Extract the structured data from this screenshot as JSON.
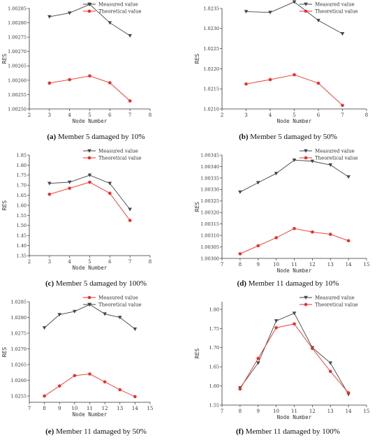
{
  "figure": {
    "panels": [
      {
        "letter": "(a)",
        "caption": " Member 5 damaged by 10%"
      },
      {
        "letter": "(b)",
        "caption": " Member 5 damaged by 50%"
      },
      {
        "letter": "(c)",
        "caption": " Member 5 damaged by 100%"
      },
      {
        "letter": "(d)",
        "caption": " Member 11 damaged by 10%"
      },
      {
        "letter": "(e)",
        "caption": " Member 11 damaged by 50%"
      },
      {
        "letter": "(f)",
        "caption": " Member 11 damaged by 100%"
      }
    ]
  },
  "chart_data": [
    {
      "type": "line",
      "xlabel": "Node Number",
      "ylabel": "RES",
      "xlim": [
        2,
        8
      ],
      "xticks": [
        2,
        3,
        4,
        5,
        6,
        7,
        8
      ],
      "ylim": [
        1.0025,
        1.00285
      ],
      "yticks": [
        "1.00250",
        "1.00255",
        "1.00260",
        "1.00265",
        "1.00270",
        "1.00275",
        "1.00280",
        "1.00285"
      ],
      "legend": "top-right",
      "series": [
        {
          "name": "Measured value",
          "color": "#444444",
          "marker": "triangle-down",
          "x": [
            3,
            4,
            5,
            6,
            7
          ],
          "values": [
            1.002821,
            1.002834,
            1.002864,
            1.0028,
            1.002755
          ]
        },
        {
          "name": "Theoretical value",
          "color": "#e8302a",
          "marker": "circle",
          "x": [
            3,
            4,
            5,
            6,
            7
          ],
          "values": [
            1.00259,
            1.002602,
            1.002615,
            1.002591,
            1.002528
          ]
        }
      ]
    },
    {
      "type": "line",
      "xlabel": "Node Number",
      "ylabel": "RES",
      "xlim": [
        2,
        8
      ],
      "xticks": [
        2,
        3,
        4,
        5,
        6,
        7,
        8
      ],
      "ylim": [
        1.021,
        1.0235
      ],
      "yticks": [
        "1.0210",
        "1.0215",
        "1.0220",
        "1.0225",
        "1.0230",
        "1.0235"
      ],
      "legend": "top-right",
      "series": [
        {
          "name": "Measured value",
          "color": "#444444",
          "marker": "triangle-down",
          "x": [
            3,
            4,
            5,
            6,
            7
          ],
          "values": [
            1.02342,
            1.0234,
            1.02366,
            1.0232,
            1.02287
          ]
        },
        {
          "name": "Theoretical value",
          "color": "#e8302a",
          "marker": "circle",
          "x": [
            3,
            4,
            5,
            6,
            7
          ],
          "values": [
            1.02162,
            1.02173,
            1.02185,
            1.02164,
            1.02109
          ]
        }
      ]
    },
    {
      "type": "line",
      "xlabel": "Node Number",
      "ylabel": "RES",
      "xlim": [
        2,
        8
      ],
      "xticks": [
        2,
        3,
        4,
        5,
        6,
        7,
        8
      ],
      "ylim": [
        1.35,
        1.85
      ],
      "yticks": [
        "1.35",
        "1.40",
        "1.45",
        "1.50",
        "1.55",
        "1.60",
        "1.65",
        "1.70",
        "1.75",
        "1.80",
        "1.85"
      ],
      "legend": "top-right",
      "series": [
        {
          "name": "Measured value",
          "color": "#444444",
          "marker": "triangle-down",
          "x": [
            3,
            4,
            5,
            6,
            7
          ],
          "values": [
            1.709,
            1.715,
            1.75,
            1.709,
            1.58
          ]
        },
        {
          "name": "Theoretical value",
          "color": "#e8302a",
          "marker": "circle",
          "x": [
            3,
            4,
            5,
            6,
            7
          ],
          "values": [
            1.655,
            1.685,
            1.715,
            1.66,
            1.525
          ]
        }
      ]
    },
    {
      "type": "line",
      "xlabel": "Node Number",
      "ylabel": "RES",
      "xlim": [
        7,
        15
      ],
      "xticks": [
        7,
        8,
        9,
        10,
        11,
        12,
        13,
        14,
        15
      ],
      "ylim": [
        1.003,
        1.00345
      ],
      "yticks": [
        "1.00300",
        "1.00305",
        "1.00310",
        "1.00315",
        "1.00320",
        "1.00325",
        "1.00330",
        "1.00335",
        "1.00340",
        "1.00345"
      ],
      "legend": "top-right",
      "series": [
        {
          "name": "Measured value",
          "color": "#444444",
          "marker": "triangle-down",
          "x": [
            8,
            9,
            10,
            11,
            12,
            13,
            14
          ],
          "values": [
            1.003289,
            1.00333,
            1.00337,
            1.003428,
            1.003423,
            1.003407,
            1.003355
          ]
        },
        {
          "name": "Theoretical value",
          "color": "#e8302a",
          "marker": "circle",
          "x": [
            8,
            9,
            10,
            11,
            12,
            13,
            14
          ],
          "values": [
            1.00302,
            1.003055,
            1.00309,
            1.00313,
            1.003115,
            1.003105,
            1.003077
          ]
        }
      ]
    },
    {
      "type": "line",
      "xlabel": "Node Number",
      "ylabel": "RES",
      "xlim": [
        7,
        15
      ],
      "xticks": [
        7,
        8,
        9,
        10,
        11,
        12,
        13,
        14,
        15
      ],
      "ylim": [
        1.0253,
        1.0285
      ],
      "yticks": [
        "1.0255",
        "1.0260",
        "1.0265",
        "1.0270",
        "1.0275",
        "1.0280",
        "1.0285"
      ],
      "legend": "top-right",
      "series": [
        {
          "name": "Measured value",
          "color": "#e8302a",
          "marker": "circle",
          "x": [
            8,
            9,
            10,
            11,
            12,
            13,
            14
          ],
          "values": [
            1.0255,
            1.02582,
            1.02615,
            1.0262,
            1.02595,
            1.0257,
            1.02548
          ]
        },
        {
          "name": "Theoretical value",
          "color": "#444444",
          "marker": "triangle-down",
          "x": [
            8,
            9,
            10,
            11,
            12,
            13,
            14
          ],
          "values": [
            1.02767,
            1.02809,
            1.02819,
            1.02841,
            1.02811,
            1.028,
            1.02763
          ]
        }
      ]
    },
    {
      "type": "line",
      "xlabel": "Node Number",
      "ylabel": "RES",
      "xlim": [
        7,
        15
      ],
      "xticks": [
        7,
        8,
        9,
        10,
        11,
        12,
        13,
        14,
        15
      ],
      "ylim": [
        1.55,
        1.82
      ],
      "yticks": [
        "1.55",
        "1.60",
        "1.65",
        "1.70",
        "1.75",
        "1.80"
      ],
      "legend": "top-right",
      "series": [
        {
          "name": "Measured value",
          "color": "#444444",
          "marker": "triangle-down",
          "x": [
            8,
            9,
            10,
            11,
            12,
            13,
            14
          ],
          "values": [
            1.595,
            1.66,
            1.77,
            1.79,
            1.7,
            1.66,
            1.578
          ]
        },
        {
          "name": "Theoretical value",
          "color": "#e8302a",
          "marker": "circle",
          "x": [
            8,
            9,
            10,
            11,
            12,
            13,
            14
          ],
          "values": [
            1.592,
            1.672,
            1.752,
            1.762,
            1.698,
            1.638,
            1.582
          ]
        }
      ]
    }
  ]
}
